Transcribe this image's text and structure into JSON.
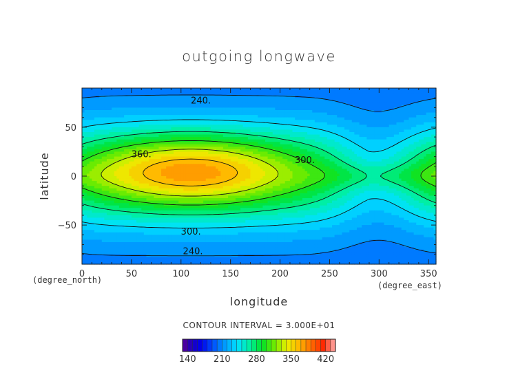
{
  "chart_data": {
    "type": "heatmap",
    "title": "outgoing longwave",
    "xlabel": "longitude",
    "ylabel": "latitude",
    "x_unit": "(degree_east)",
    "y_unit": "(degree_north)",
    "xlim": [
      0,
      357.5
    ],
    "ylim": [
      -90,
      90
    ],
    "x_ticks": [
      0,
      50,
      100,
      150,
      200,
      250,
      300,
      350
    ],
    "y_ticks": [
      -50,
      0,
      50
    ],
    "contour_interval_text": "CONTOUR INTERVAL = 3.000E+01",
    "contour_line_labels": [
      {
        "text": "240.",
        "lon": 120,
        "lat": 77
      },
      {
        "text": "360.",
        "lon": 60,
        "lat": 22
      },
      {
        "text": "300.",
        "lon": 225,
        "lat": 16
      },
      {
        "text": "300.",
        "lon": 110,
        "lat": -57
      },
      {
        "text": "240.",
        "lon": 112,
        "lat": -77
      }
    ],
    "colorbar": {
      "min": 130,
      "max": 440,
      "step": 10,
      "tick_labels": [
        "140",
        "210",
        "280",
        "350",
        "420"
      ]
    },
    "field_description": {
      "max_value": 380,
      "max_center_lon": 110,
      "max_center_lat": 5
    }
  }
}
